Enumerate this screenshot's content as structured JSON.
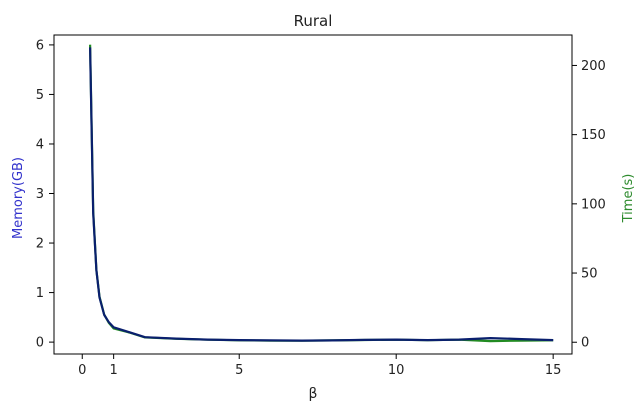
{
  "chart_data": {
    "type": "line",
    "title": "Rural",
    "xlabel": "β",
    "ylabel_left": "Memory(GB)",
    "ylabel_right": "Time(s)",
    "xlim": [
      -0.9,
      15.6
    ],
    "ylim_left": [
      -0.24,
      6.2
    ],
    "ylim_right": [
      -8.5,
      222
    ],
    "x_ticks": [
      0,
      1,
      5,
      10,
      15
    ],
    "y_left_ticks": [
      0,
      1,
      2,
      3,
      4,
      5,
      6
    ],
    "y_right_ticks": [
      0,
      50,
      100,
      150,
      200
    ],
    "colors": {
      "memory": "#0000cc",
      "time": "#228b22",
      "overlap": "#0a1f6e"
    },
    "series": [
      {
        "name": "Memory(GB)",
        "axis": "left",
        "x": [
          0.25,
          0.35,
          0.45,
          0.55,
          0.7,
          0.85,
          1.0,
          1.5,
          2.0,
          3.0,
          4.0,
          5.0,
          6.0,
          7.0,
          8.0,
          9.0,
          10.0,
          11.0,
          12.0,
          13.0,
          14.0,
          15.0
        ],
        "values": [
          5.95,
          2.6,
          1.45,
          0.9,
          0.55,
          0.4,
          0.3,
          0.2,
          0.1,
          0.07,
          0.05,
          0.04,
          0.035,
          0.03,
          0.035,
          0.045,
          0.05,
          0.04,
          0.05,
          0.08,
          0.06,
          0.04
        ]
      },
      {
        "name": "Time(s)",
        "axis": "right",
        "x": [
          0.25,
          0.35,
          0.45,
          0.55,
          0.7,
          0.85,
          1.0,
          1.5,
          2.0,
          3.0,
          4.0,
          5.0,
          6.0,
          7.0,
          8.0,
          9.0,
          10.0,
          11.0,
          12.0,
          13.0,
          14.0,
          15.0
        ],
        "values": [
          215,
          95,
          52,
          33,
          20,
          14,
          10,
          7,
          3.5,
          2.5,
          1.8,
          1.4,
          1.2,
          1.1,
          1.3,
          1.6,
          1.8,
          1.5,
          1.8,
          0.8,
          1.2,
          1.4
        ]
      }
    ],
    "grid": false,
    "legend": "none"
  }
}
